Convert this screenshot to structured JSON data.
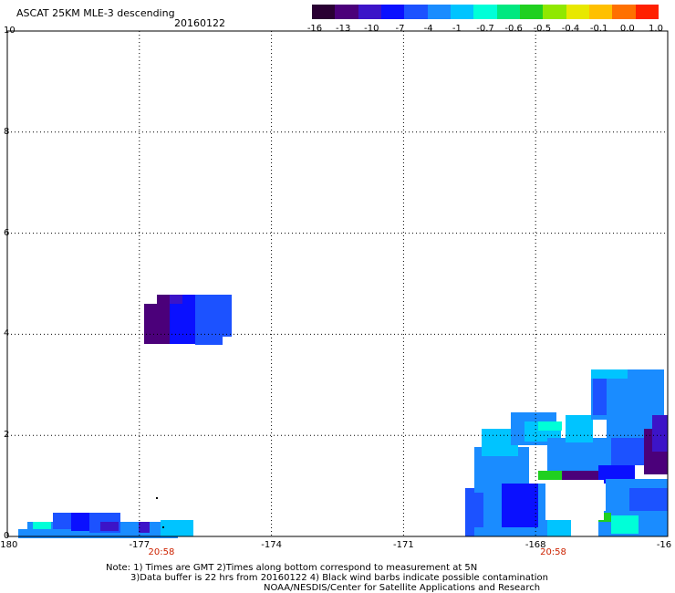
{
  "header": {
    "title": "ASCAT 25KM MLE-3 descending",
    "date": "20160122"
  },
  "colorbar": {
    "colors": [
      "#2a0033",
      "#4b007a",
      "#3c14c8",
      "#0a10ff",
      "#1c52ff",
      "#1a8cff",
      "#00c4ff",
      "#00ffd8",
      "#00e880",
      "#20d020",
      "#90e800",
      "#e8e800",
      "#ffc000",
      "#ff7000",
      "#ff2000"
    ],
    "labels": [
      "-16",
      "-13",
      "-10",
      "-7",
      "-4",
      "-1",
      "-0.7",
      "-0.6",
      "-0.5",
      "-0.4",
      "-0.1",
      "0.0",
      "1.0"
    ]
  },
  "map": {
    "x_ticks": [
      "-180",
      "-177",
      "-174",
      "-171",
      "-168",
      "-16"
    ],
    "y_ticks": [
      "10",
      "8",
      "6",
      "4",
      "2",
      "0"
    ],
    "xlim": [
      -180,
      -165
    ],
    "ylim": [
      0,
      10
    ],
    "grid": "dotted",
    "time_labels": [
      {
        "text": "20:58",
        "lon": -176.5
      },
      {
        "text": "20:58",
        "lon": -167.6
      }
    ]
  },
  "footer": {
    "note_line1": "Note: 1) Times are GMT 2)Times along bottom correspond to measurement at 5N",
    "note_line2": "3)Data buffer is 22 hrs from 20160122 4) Black wind barbs indicate possible contamination",
    "credit": "NOAA/NESDIS/Center for Satellite Applications and Research"
  }
}
